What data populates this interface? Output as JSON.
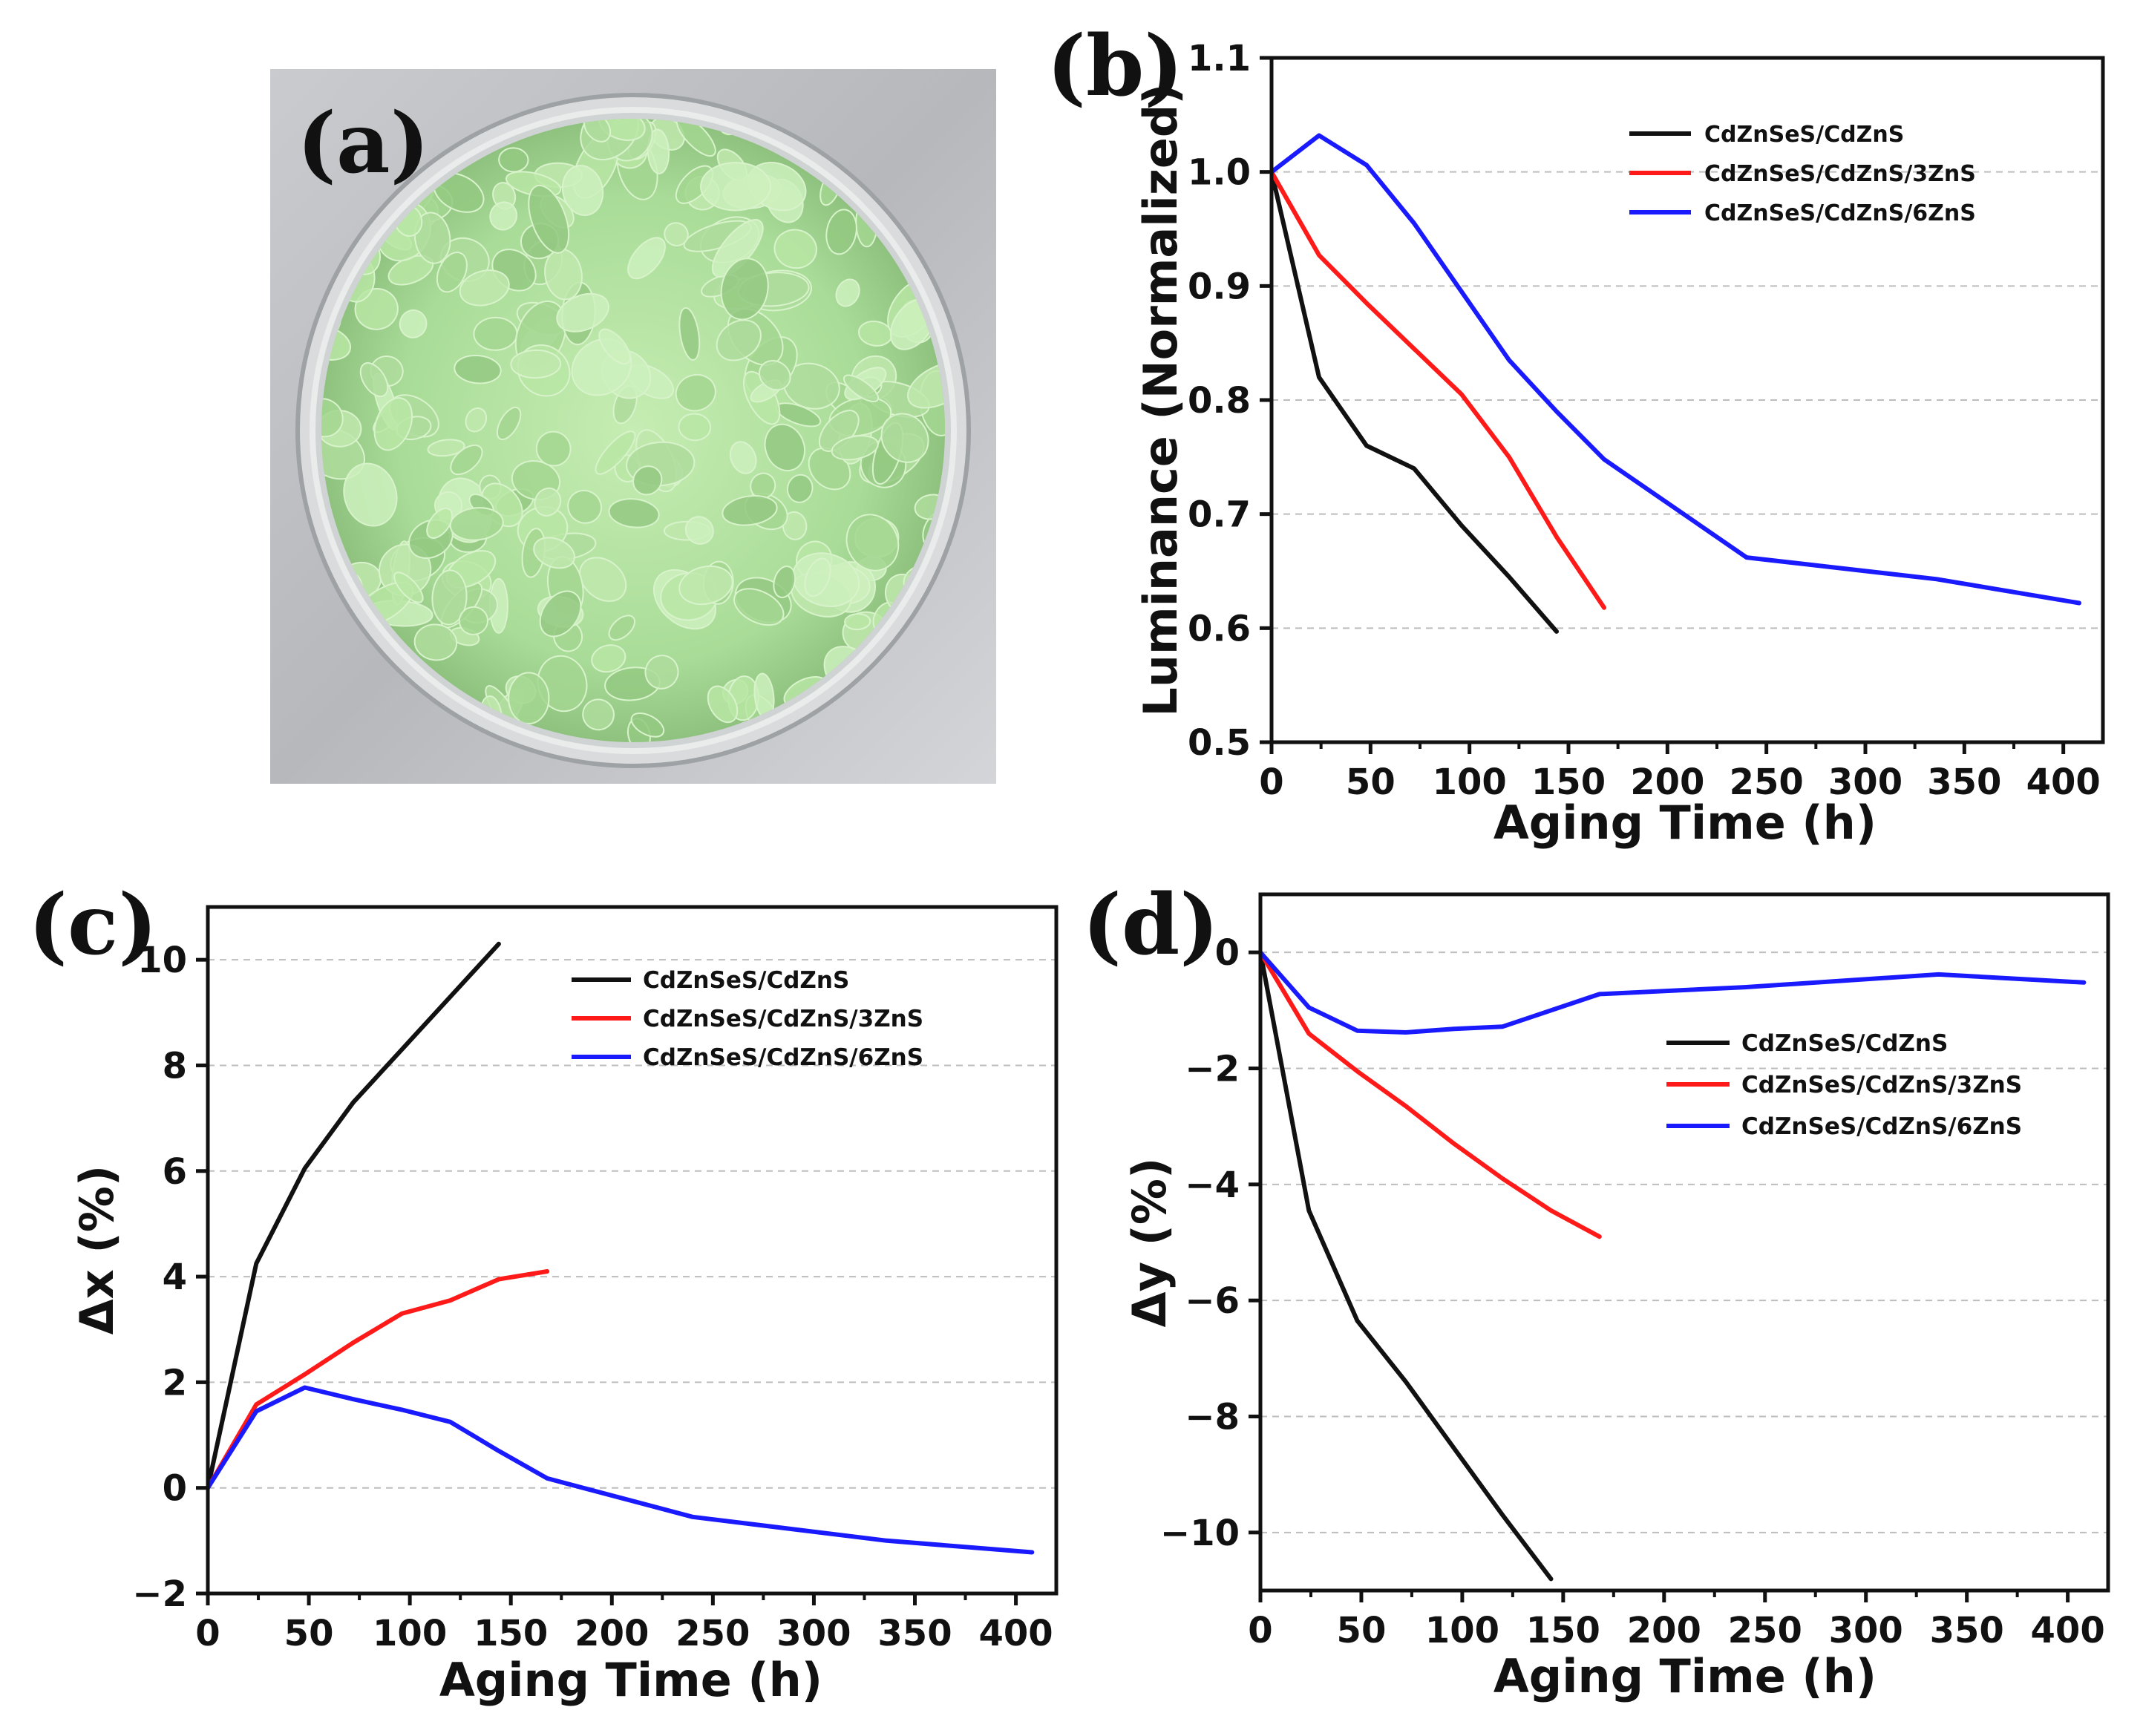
{
  "panels": {
    "a": {
      "label": "(a)"
    },
    "b": {
      "label": "(b)"
    },
    "c": {
      "label": "(c)"
    },
    "d": {
      "label": "(d)"
    }
  },
  "photo": {
    "description_icon": "petri-dish-with-green-phosphor-granules-image"
  },
  "colors": {
    "black": "#111111",
    "red": "#ff1a1a",
    "blue": "#1a1aff",
    "grid": "#bdbdbd"
  },
  "chart_data": [
    {
      "id": "b",
      "type": "line",
      "title": "",
      "xlabel": "Aging Time (h)",
      "ylabel": "Luminance (Normalized)",
      "xlim": [
        0,
        420
      ],
      "ylim": [
        0.5,
        1.1
      ],
      "xticks": [
        0,
        50,
        100,
        150,
        200,
        250,
        300,
        350,
        400
      ],
      "yticks": [
        0.5,
        0.6,
        0.7,
        0.8,
        0.9,
        1.0,
        1.1
      ],
      "ytick_labels": [
        "0.5",
        "0.6",
        "0.7",
        "0.8",
        "0.9",
        "1.0",
        "1.1"
      ],
      "grid": "horizontal-dashed",
      "legend_position": "top-right",
      "series": [
        {
          "name": "CdZnSeS/CdZnS",
          "color": "#111111",
          "x": [
            0,
            24,
            48,
            72,
            96,
            120,
            144
          ],
          "y": [
            1.0,
            0.82,
            0.76,
            0.74,
            0.69,
            0.645,
            0.597
          ]
        },
        {
          "name": "CdZnSeS/CdZnS/3ZnS",
          "color": "#ff1a1a",
          "x": [
            0,
            24,
            48,
            72,
            96,
            120,
            144,
            168
          ],
          "y": [
            1.0,
            0.927,
            0.885,
            0.845,
            0.805,
            0.75,
            0.68,
            0.618
          ]
        },
        {
          "name": "CdZnSeS/CdZnS/6ZnS",
          "color": "#1a1aff",
          "x": [
            0,
            24,
            48,
            72,
            96,
            120,
            144,
            168,
            240,
            336,
            408
          ],
          "y": [
            1.0,
            1.032,
            1.006,
            0.955,
            0.895,
            0.835,
            0.79,
            0.748,
            0.662,
            0.643,
            0.622
          ]
        }
      ]
    },
    {
      "id": "c",
      "type": "line",
      "title": "",
      "xlabel": "Aging Time (h)",
      "ylabel": "Δx (%)",
      "xlim": [
        0,
        420
      ],
      "ylim": [
        -2,
        11
      ],
      "xticks": [
        0,
        50,
        100,
        150,
        200,
        250,
        300,
        350,
        400
      ],
      "yticks": [
        -2,
        0,
        2,
        4,
        6,
        8,
        10
      ],
      "ytick_labels": [
        "−2",
        "0",
        "2",
        "4",
        "6",
        "8",
        "10"
      ],
      "grid": "horizontal-dashed",
      "legend_position": "top-right",
      "series": [
        {
          "name": "CdZnSeS/CdZnS",
          "color": "#111111",
          "x": [
            0,
            24,
            48,
            72,
            96,
            120,
            144
          ],
          "y": [
            0,
            4.25,
            6.05,
            7.3,
            8.3,
            9.3,
            10.3
          ]
        },
        {
          "name": "CdZnSeS/CdZnS/3ZnS",
          "color": "#ff1a1a",
          "x": [
            0,
            24,
            48,
            72,
            96,
            120,
            144,
            168
          ],
          "y": [
            0,
            1.58,
            2.15,
            2.75,
            3.3,
            3.55,
            3.95,
            4.1
          ]
        },
        {
          "name": "CdZnSeS/CdZnS/6ZnS",
          "color": "#1a1aff",
          "x": [
            0,
            24,
            48,
            72,
            96,
            120,
            144,
            168,
            240,
            336,
            408
          ],
          "y": [
            0,
            1.45,
            1.9,
            1.68,
            1.48,
            1.25,
            0.7,
            0.18,
            -0.55,
            -1.0,
            -1.22
          ]
        }
      ]
    },
    {
      "id": "d",
      "type": "line",
      "title": "",
      "xlabel": "Aging Time (h)",
      "ylabel": "Δy (%)",
      "xlim": [
        0,
        420
      ],
      "ylim": [
        -11,
        1
      ],
      "xticks": [
        0,
        50,
        100,
        150,
        200,
        250,
        300,
        350,
        400
      ],
      "yticks": [
        -10,
        -8,
        -6,
        -4,
        -2,
        0
      ],
      "ytick_labels": [
        "−10",
        "−8",
        "−6",
        "−4",
        "−2",
        "0"
      ],
      "grid": "horizontal-dashed",
      "legend_position": "center-right",
      "series": [
        {
          "name": "CdZnSeS/CdZnS",
          "color": "#111111",
          "x": [
            0,
            24,
            48,
            72,
            96,
            120,
            144
          ],
          "y": [
            0,
            -4.45,
            -6.35,
            -7.4,
            -8.55,
            -9.7,
            -10.8
          ]
        },
        {
          "name": "CdZnSeS/CdZnS/3ZnS",
          "color": "#ff1a1a",
          "x": [
            0,
            24,
            48,
            72,
            96,
            120,
            144,
            168
          ],
          "y": [
            0,
            -1.4,
            -2.05,
            -2.65,
            -3.3,
            -3.9,
            -4.45,
            -4.9
          ]
        },
        {
          "name": "CdZnSeS/CdZnS/6ZnS",
          "color": "#1a1aff",
          "x": [
            0,
            24,
            48,
            72,
            96,
            120,
            168,
            240,
            336,
            408
          ],
          "y": [
            0,
            -0.95,
            -1.35,
            -1.38,
            -1.32,
            -1.28,
            -0.72,
            -0.6,
            -0.38,
            -0.52
          ]
        }
      ]
    }
  ]
}
